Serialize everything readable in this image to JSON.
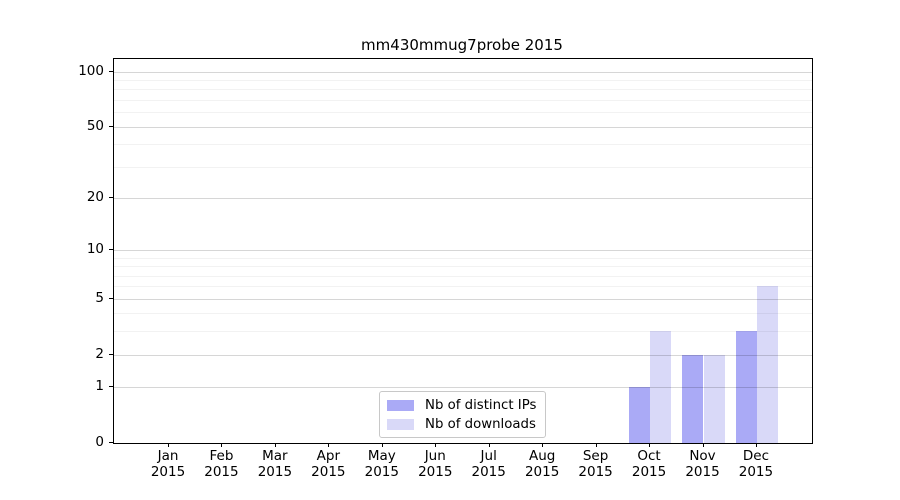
{
  "chart_data": {
    "type": "bar",
    "title": "mm430mmug7probe 2015",
    "x_tick_months": [
      "Jan",
      "Feb",
      "Mar",
      "Apr",
      "May",
      "Jun",
      "Jul",
      "Aug",
      "Sep",
      "Oct",
      "Nov",
      "Dec"
    ],
    "x_tick_year": "2015",
    "series": [
      {
        "name": "Nb of distinct IPs",
        "color": "#aaaaf6",
        "values": [
          0,
          0,
          0,
          0,
          0,
          0,
          0,
          0,
          0,
          1,
          2,
          3
        ]
      },
      {
        "name": "Nb of downloads",
        "color": "#d9d9f8",
        "values": [
          0,
          0,
          0,
          0,
          0,
          0,
          0,
          0,
          0,
          3,
          2,
          6
        ]
      }
    ],
    "y_scale": "log10(1+v)",
    "ylim": [
      0,
      117
    ],
    "y_ticks": [
      {
        "value": 100,
        "label": "100"
      },
      {
        "value": 50,
        "label": "50"
      },
      {
        "value": 20,
        "label": "20"
      },
      {
        "value": 10,
        "label": "10"
      },
      {
        "value": 5,
        "label": "5"
      },
      {
        "value": 2,
        "label": "2"
      },
      {
        "value": 1,
        "label": "1"
      },
      {
        "value": 0,
        "label": "0"
      }
    ],
    "y_minor_ticks": [
      3,
      4,
      6,
      7,
      8,
      9,
      30,
      40,
      60,
      70,
      80,
      90
    ],
    "grid": "horizontal major and minor gridlines",
    "legend_position": "lower center, inside plot"
  },
  "colors": {
    "distinct_ips_bar": "#aaaaf6",
    "downloads_bar": "#d9d9f8",
    "grid_major": "rgba(0,0,0,0.16)",
    "grid_minor": "rgba(0,0,0,0.05)",
    "spine": "#000000",
    "background": "#ffffff",
    "legend_border": "#c8c8c8"
  }
}
